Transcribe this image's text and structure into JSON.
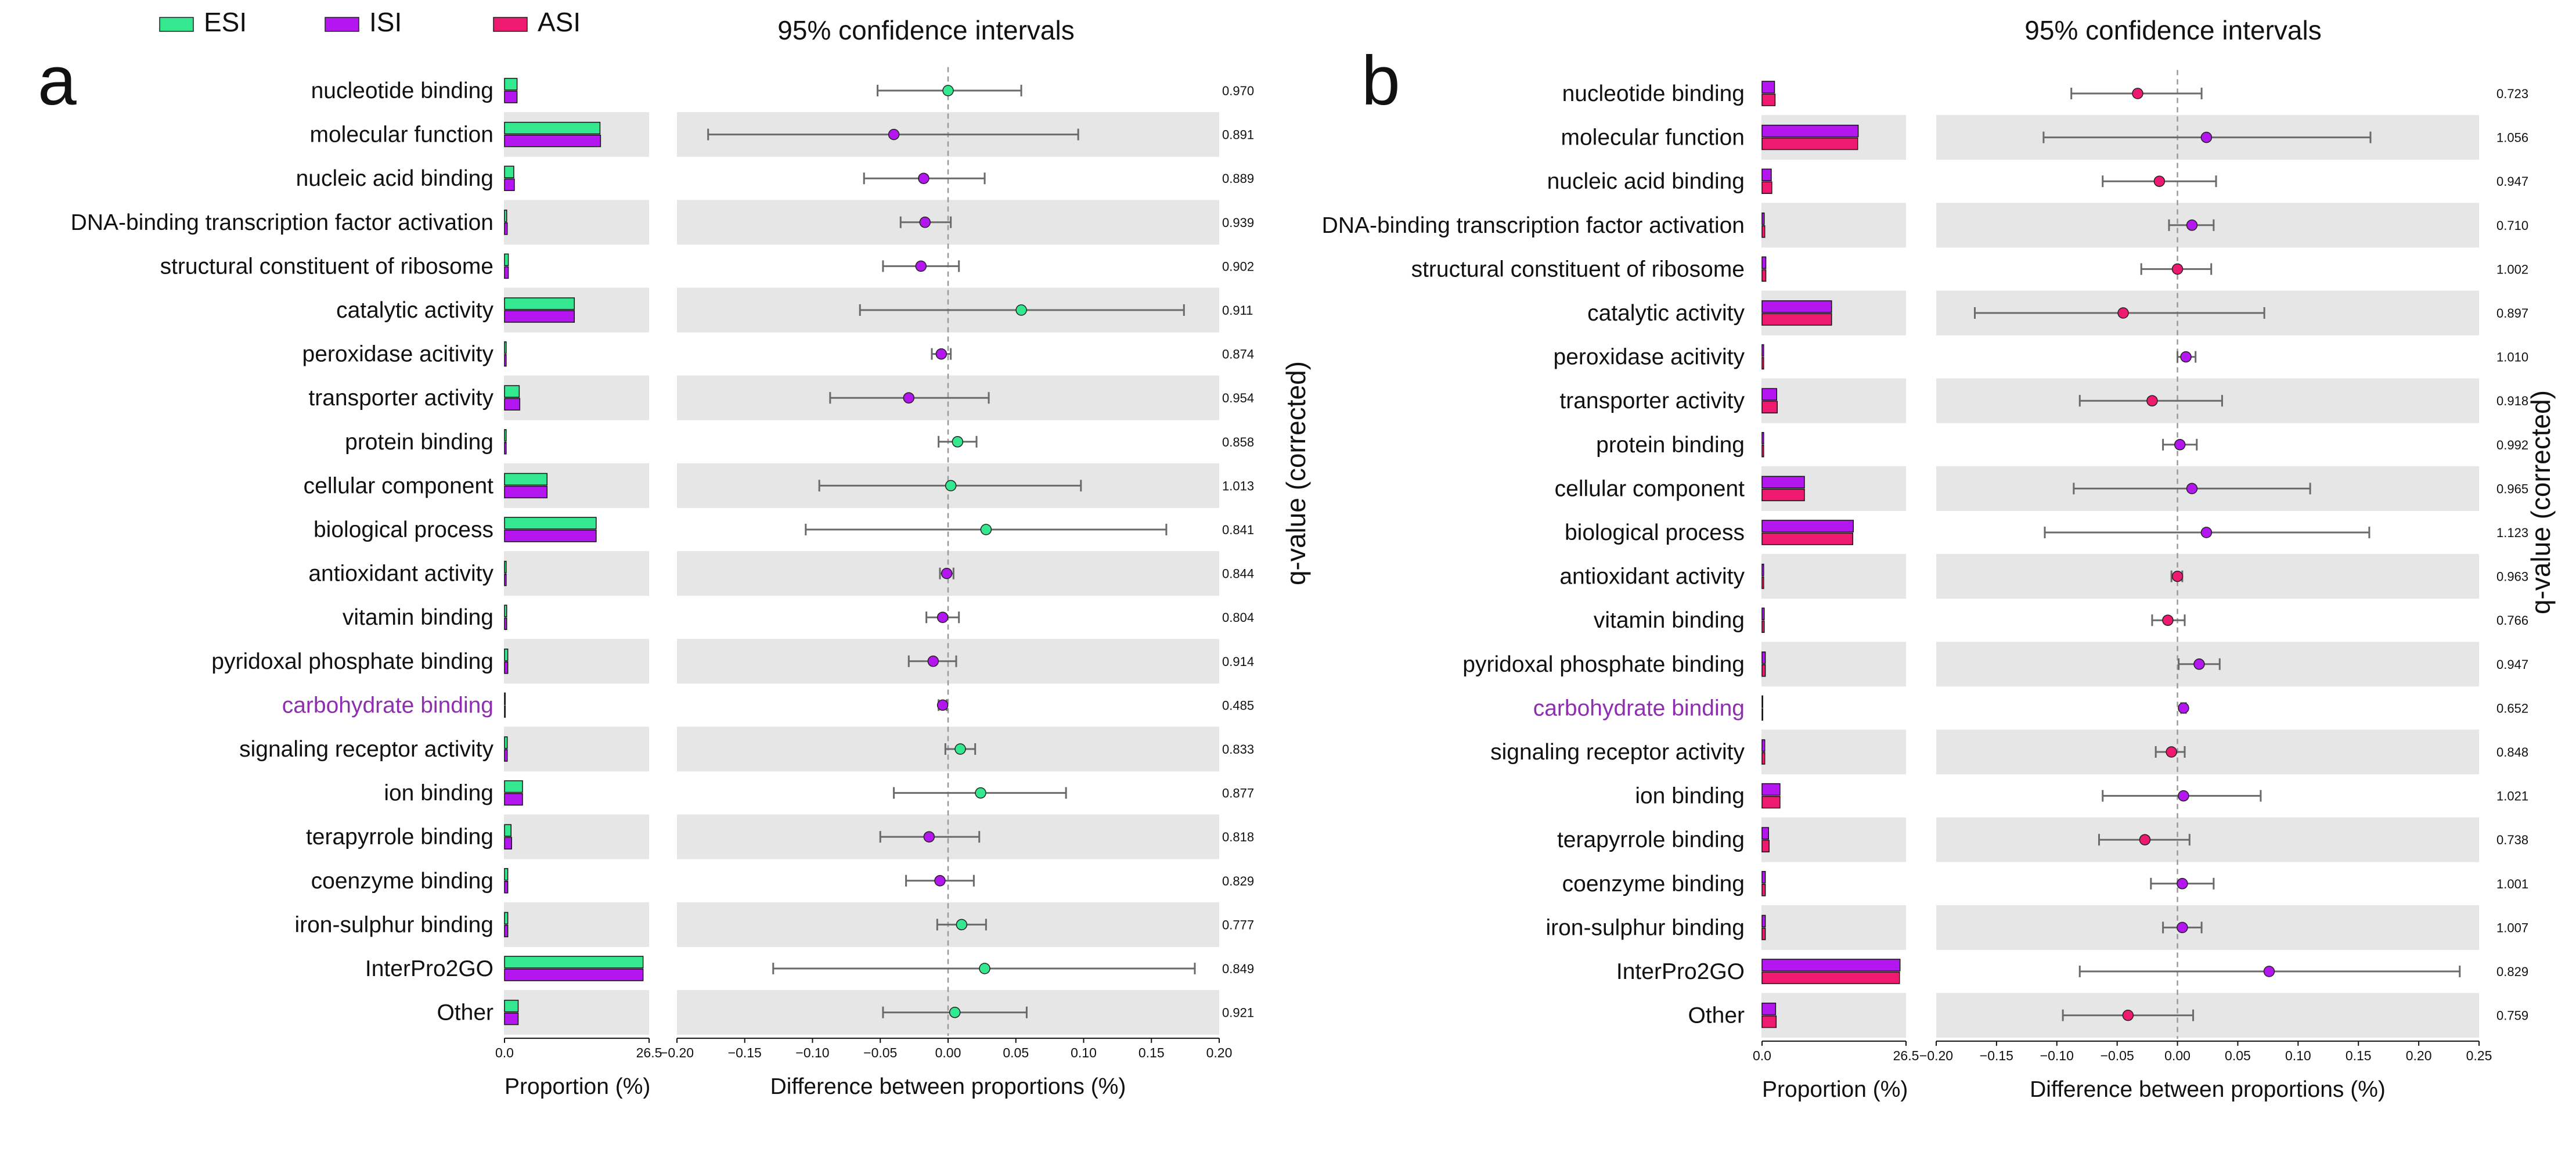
{
  "legend": [
    {
      "label": "ESI",
      "color": "#33e88f"
    },
    {
      "label": "ISI",
      "color": "#b416f0"
    },
    {
      "label": "ASI",
      "color": "#ee1a6f"
    }
  ],
  "chart_data": [
    {
      "type": "bar",
      "panel_label": "a",
      "title": "95% confidence intervals",
      "categories": [
        "nucleotide binding",
        "molecular function",
        "nucleic acid binding",
        "DNA-binding transcription factor activation",
        "structural constituent of ribosome",
        "catalytic activity",
        "peroxidase acitivity",
        "transporter activity",
        "protein binding",
        "cellular component",
        "biological process",
        "antioxidant activity",
        "vitamin binding",
        "pyridoxal phosphate binding",
        "carbohydrate binding",
        "signaling receptor activity",
        "ion binding",
        "terapyrrole binding",
        "coenzyme binding",
        "iron-sulphur binding",
        "InterPro2GO",
        "Other"
      ],
      "highlight_category": "carbohydrate binding",
      "highlight_color": "#8e2fb0",
      "series": [
        {
          "name": "ESI",
          "color": "#33e88f",
          "values": [
            2.3,
            17.5,
            1.7,
            0.4,
            0.7,
            12.8,
            0.3,
            2.7,
            0.3,
            7.8,
            16.8,
            0.3,
            0.4,
            0.6,
            0.1,
            0.5,
            3.3,
            1.2,
            0.6,
            0.6,
            25.4,
            2.5
          ]
        },
        {
          "name": "ISI",
          "color": "#b416f0",
          "values": [
            2.3,
            17.6,
            1.8,
            0.5,
            0.7,
            12.8,
            0.3,
            2.8,
            0.3,
            7.8,
            16.8,
            0.3,
            0.4,
            0.6,
            0.1,
            0.5,
            3.3,
            1.3,
            0.6,
            0.6,
            25.4,
            2.5
          ]
        }
      ],
      "bar_xlim": [
        0,
        26.5
      ],
      "bar_ticks": [
        "0.0",
        "26.5"
      ],
      "bar_xlabel": "Proportion (%)",
      "diff": [
        0.0,
        -0.04,
        -0.018,
        -0.017,
        -0.02,
        0.054,
        -0.005,
        -0.029,
        0.007,
        0.002,
        0.028,
        -0.001,
        -0.004,
        -0.011,
        -0.004,
        0.009,
        0.024,
        -0.014,
        -0.006,
        0.01,
        0.027,
        0.005
      ],
      "ci_low": [
        -0.052,
        -0.177,
        -0.062,
        -0.035,
        -0.048,
        -0.065,
        -0.012,
        -0.087,
        -0.007,
        -0.095,
        -0.105,
        -0.006,
        -0.016,
        -0.029,
        -0.007,
        -0.002,
        -0.04,
        -0.05,
        -0.031,
        -0.008,
        -0.129,
        -0.048
      ],
      "ci_high": [
        0.054,
        0.096,
        0.027,
        0.002,
        0.008,
        0.174,
        0.002,
        0.03,
        0.021,
        0.098,
        0.161,
        0.004,
        0.008,
        0.006,
        -0.001,
        0.02,
        0.087,
        0.023,
        0.019,
        0.028,
        0.182,
        0.058
      ],
      "point_series": [
        "ESI",
        "ISI",
        "ISI",
        "ISI",
        "ISI",
        "ESI",
        "ISI",
        "ISI",
        "ESI",
        "ESI",
        "ESI",
        "ISI",
        "ISI",
        "ISI",
        "ISI",
        "ESI",
        "ESI",
        "ISI",
        "ISI",
        "ESI",
        "ESI",
        "ESI"
      ],
      "diff_xlim": [
        -0.2,
        0.2
      ],
      "diff_ticks": [
        "−0.20",
        "−0.15",
        "−0.10",
        "−0.05",
        "0.00",
        "0.05",
        "0.10",
        "0.15",
        "0.20"
      ],
      "diff_xlabel": "Difference between proportions (%)",
      "q_values": [
        "0.970",
        "0.891",
        "0.889",
        "0.939",
        "0.902",
        "0.911",
        "0.874",
        "0.954",
        "0.858",
        "1.013",
        "0.841",
        "0.844",
        "0.804",
        "0.914",
        "0.485",
        "0.833",
        "0.877",
        "0.818",
        "0.829",
        "0.777",
        "0.849",
        "0.921"
      ],
      "q_label": "q-value (corrected)"
    },
    {
      "type": "bar",
      "panel_label": "b",
      "title": "95% confidence intervals",
      "categories": [
        "nucleotide binding",
        "molecular function",
        "nucleic acid binding",
        "DNA-binding transcription factor activation",
        "structural constituent of ribosome",
        "catalytic activity",
        "peroxidase acitivity",
        "transporter activity",
        "protein binding",
        "cellular component",
        "biological process",
        "antioxidant activity",
        "vitamin binding",
        "pyridoxal phosphate binding",
        "carbohydrate binding",
        "signaling receptor activity",
        "ion binding",
        "terapyrrole binding",
        "coenzyme binding",
        "iron-sulphur binding",
        "InterPro2GO",
        "Other"
      ],
      "highlight_category": "carbohydrate binding",
      "highlight_color": "#8e2fb0",
      "series": [
        {
          "name": "ISI",
          "color": "#b416f0",
          "values": [
            2.3,
            17.7,
            1.7,
            0.4,
            0.7,
            12.8,
            0.3,
            2.7,
            0.3,
            7.8,
            16.8,
            0.3,
            0.4,
            0.6,
            0.1,
            0.5,
            3.3,
            1.2,
            0.6,
            0.6,
            25.4,
            2.5
          ]
        },
        {
          "name": "ASI",
          "color": "#ee1a6f",
          "values": [
            2.4,
            17.6,
            1.8,
            0.5,
            0.7,
            12.8,
            0.3,
            2.8,
            0.3,
            7.8,
            16.7,
            0.3,
            0.4,
            0.6,
            0.1,
            0.5,
            3.3,
            1.3,
            0.6,
            0.6,
            25.3,
            2.6
          ]
        }
      ],
      "bar_xlim": [
        0,
        26.5
      ],
      "bar_ticks": [
        "0.0",
        "26.5"
      ],
      "bar_xlabel": "Proportion (%)",
      "diff": [
        -0.033,
        0.024,
        -0.015,
        0.012,
        0.0,
        -0.045,
        0.007,
        -0.021,
        0.002,
        0.012,
        0.024,
        0.0,
        -0.008,
        0.018,
        0.005,
        -0.005,
        0.005,
        -0.027,
        0.004,
        0.004,
        0.076,
        -0.041
      ],
      "ci_low": [
        -0.088,
        -0.111,
        -0.062,
        -0.007,
        -0.03,
        -0.168,
        0.0,
        -0.081,
        -0.012,
        -0.086,
        -0.11,
        -0.005,
        -0.021,
        0.001,
        0.003,
        -0.018,
        -0.062,
        -0.065,
        -0.022,
        -0.012,
        -0.081,
        -0.095
      ],
      "ci_high": [
        0.02,
        0.16,
        0.032,
        0.03,
        0.028,
        0.072,
        0.015,
        0.037,
        0.016,
        0.11,
        0.159,
        0.004,
        0.006,
        0.035,
        0.007,
        0.006,
        0.069,
        0.01,
        0.03,
        0.02,
        0.234,
        0.013
      ],
      "point_series": [
        "ASI",
        "ISI",
        "ASI",
        "ISI",
        "ASI",
        "ASI",
        "ISI",
        "ASI",
        "ISI",
        "ISI",
        "ISI",
        "ASI",
        "ASI",
        "ISI",
        "ISI",
        "ASI",
        "ISI",
        "ASI",
        "ISI",
        "ISI",
        "ISI",
        "ASI"
      ],
      "diff_xlim": [
        -0.2,
        0.25
      ],
      "diff_ticks": [
        "−0.20",
        "−0.15",
        "−0.10",
        "−0.05",
        "0.00",
        "0.05",
        "0.10",
        "0.15",
        "0.20",
        "0.25"
      ],
      "diff_xlabel": "Difference between proportions (%)",
      "q_values": [
        "0.723",
        "1.056",
        "0.947",
        "0.710",
        "1.002",
        "0.897",
        "1.010",
        "0.918",
        "0.992",
        "0.965",
        "1.123",
        "0.963",
        "0.766",
        "0.947",
        "0.652",
        "0.848",
        "1.021",
        "0.738",
        "1.001",
        "1.007",
        "0.829",
        "0.759"
      ],
      "q_label": "q-value (corrected)"
    }
  ]
}
